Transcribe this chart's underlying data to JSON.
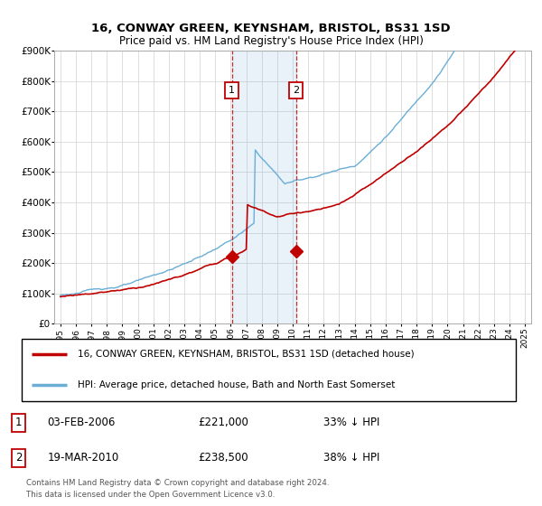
{
  "title": "16, CONWAY GREEN, KEYNSHAM, BRISTOL, BS31 1SD",
  "subtitle": "Price paid vs. HM Land Registry's House Price Index (HPI)",
  "footer": "Contains HM Land Registry data © Crown copyright and database right 2024.\nThis data is licensed under the Open Government Licence v3.0.",
  "legend_line1": "16, CONWAY GREEN, KEYNSHAM, BRISTOL, BS31 1SD (detached house)",
  "legend_line2": "HPI: Average price, detached house, Bath and North East Somerset",
  "sale1_date": "03-FEB-2006",
  "sale1_price": "£221,000",
  "sale1_vs": "33% ↓ HPI",
  "sale2_date": "19-MAR-2010",
  "sale2_price": "£238,500",
  "sale2_vs": "38% ↓ HPI",
  "hpi_color": "#6aaed6",
  "price_color": "#c00000",
  "sale1_vline_x": 2006.08,
  "sale2_vline_x": 2010.21,
  "shade_alpha": 0.15,
  "ylim": [
    0,
    900000
  ],
  "xlim_start": 1994.6,
  "xlim_end": 2025.4,
  "sale1_price_val": 221000,
  "sale2_price_val": 238500,
  "sale1_t": 2006.08,
  "sale2_t": 2010.21
}
